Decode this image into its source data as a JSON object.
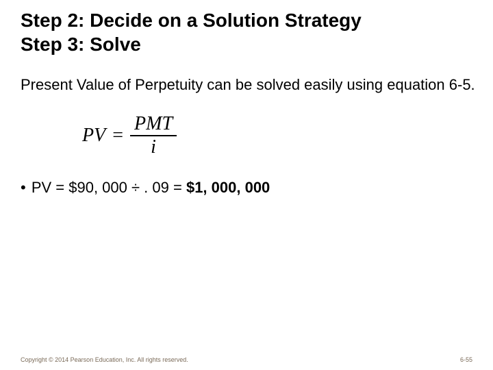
{
  "title": {
    "line1": "Step 2: Decide on a Solution Strategy",
    "line2": "Step 3: Solve"
  },
  "body": {
    "paragraph": "Present Value of Perpetuity can be solved easily using equation 6-5."
  },
  "formula": {
    "lhs": "PV",
    "eq": "=",
    "numerator": "PMT",
    "denominator": "i"
  },
  "calc": {
    "bullet": "•",
    "prefix": "PV = $90, 000 ÷ . 09 = ",
    "result": "$1, 000, 000"
  },
  "footer": {
    "copyright": "Copyright © 2014 Pearson Education, Inc. All rights reserved.",
    "page": "6-55"
  }
}
